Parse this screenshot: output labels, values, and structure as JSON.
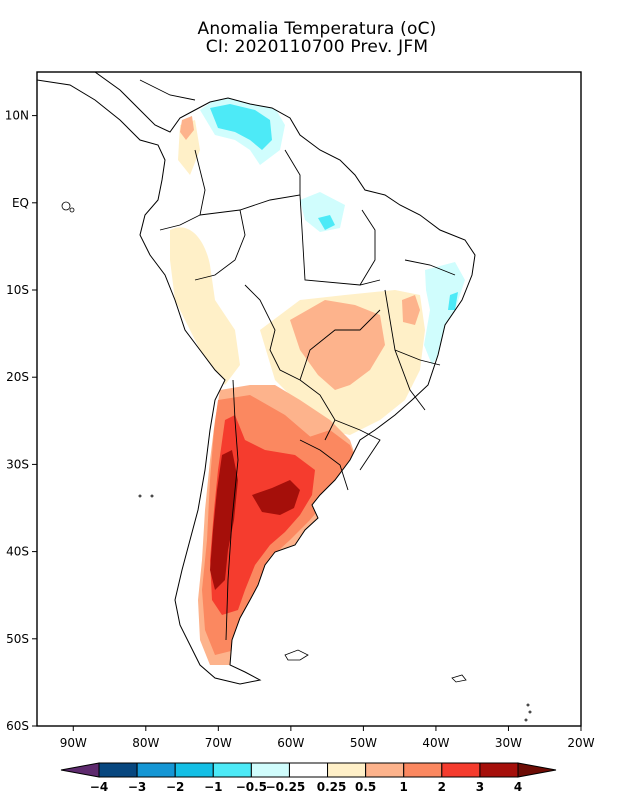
{
  "title": {
    "line1": "Anomalia Temperatura (oC)",
    "line2": "CI: 2020110700 Prev. JFM"
  },
  "map": {
    "region": "South America",
    "variable": "Temperature anomaly",
    "units": "oC",
    "lon_range": [
      -95,
      -20
    ],
    "lat_range": [
      -60,
      15
    ],
    "x_ticks": [
      {
        "lon": -90,
        "label": "90W"
      },
      {
        "lon": -80,
        "label": "80W"
      },
      {
        "lon": -70,
        "label": "70W"
      },
      {
        "lon": -60,
        "label": "60W"
      },
      {
        "lon": -50,
        "label": "50W"
      },
      {
        "lon": -40,
        "label": "40W"
      },
      {
        "lon": -30,
        "label": "30W"
      },
      {
        "lon": -20,
        "label": "20W"
      }
    ],
    "y_ticks": [
      {
        "lat": 10,
        "label": "10N"
      },
      {
        "lat": 0,
        "label": "EQ"
      },
      {
        "lat": -10,
        "label": "10S"
      },
      {
        "lat": -20,
        "label": "20S"
      },
      {
        "lat": -30,
        "label": "30S"
      },
      {
        "lat": -40,
        "label": "40S"
      },
      {
        "lat": -50,
        "label": "50S"
      },
      {
        "lat": -60,
        "label": "60S"
      }
    ]
  },
  "colorbar": {
    "levels": [
      "-4",
      "-3",
      "-2",
      "-1",
      "-0.5",
      "-0.25",
      "0.25",
      "0.5",
      "1",
      "2",
      "3",
      "4"
    ],
    "low_extend_color": "#5e2a6e",
    "colors": [
      "#08477f",
      "#1596d4",
      "#14bfe5",
      "#4deaf7",
      "#d0fdfd",
      "#ffffff",
      "#fff0c8",
      "#fdb38c",
      "#fb8860",
      "#f53c2e",
      "#a50f0a"
    ],
    "high_extend_color": "#6d0c05"
  },
  "anomaly_regions": [
    {
      "name": "patagonia-andes-core",
      "level": "3 to 4",
      "color": "#a50f0a"
    },
    {
      "name": "central-argentina-core",
      "level": "3 to 4",
      "color": "#a50f0a"
    },
    {
      "name": "argentina-warm",
      "level": "2 to 3",
      "color": "#f53c2e"
    },
    {
      "name": "southern-brazil-warm",
      "level": "1 to 2",
      "color": "#fb8860"
    },
    {
      "name": "central-brazil-warm",
      "level": "0.5 to 1",
      "color": "#fdb38c"
    },
    {
      "name": "venezuela-cool",
      "level": "-1 to -0.5",
      "color": "#4deaf7"
    },
    {
      "name": "northeast-brazil-cool",
      "level": "-0.5 to -0.25",
      "color": "#d0fdfd"
    }
  ]
}
